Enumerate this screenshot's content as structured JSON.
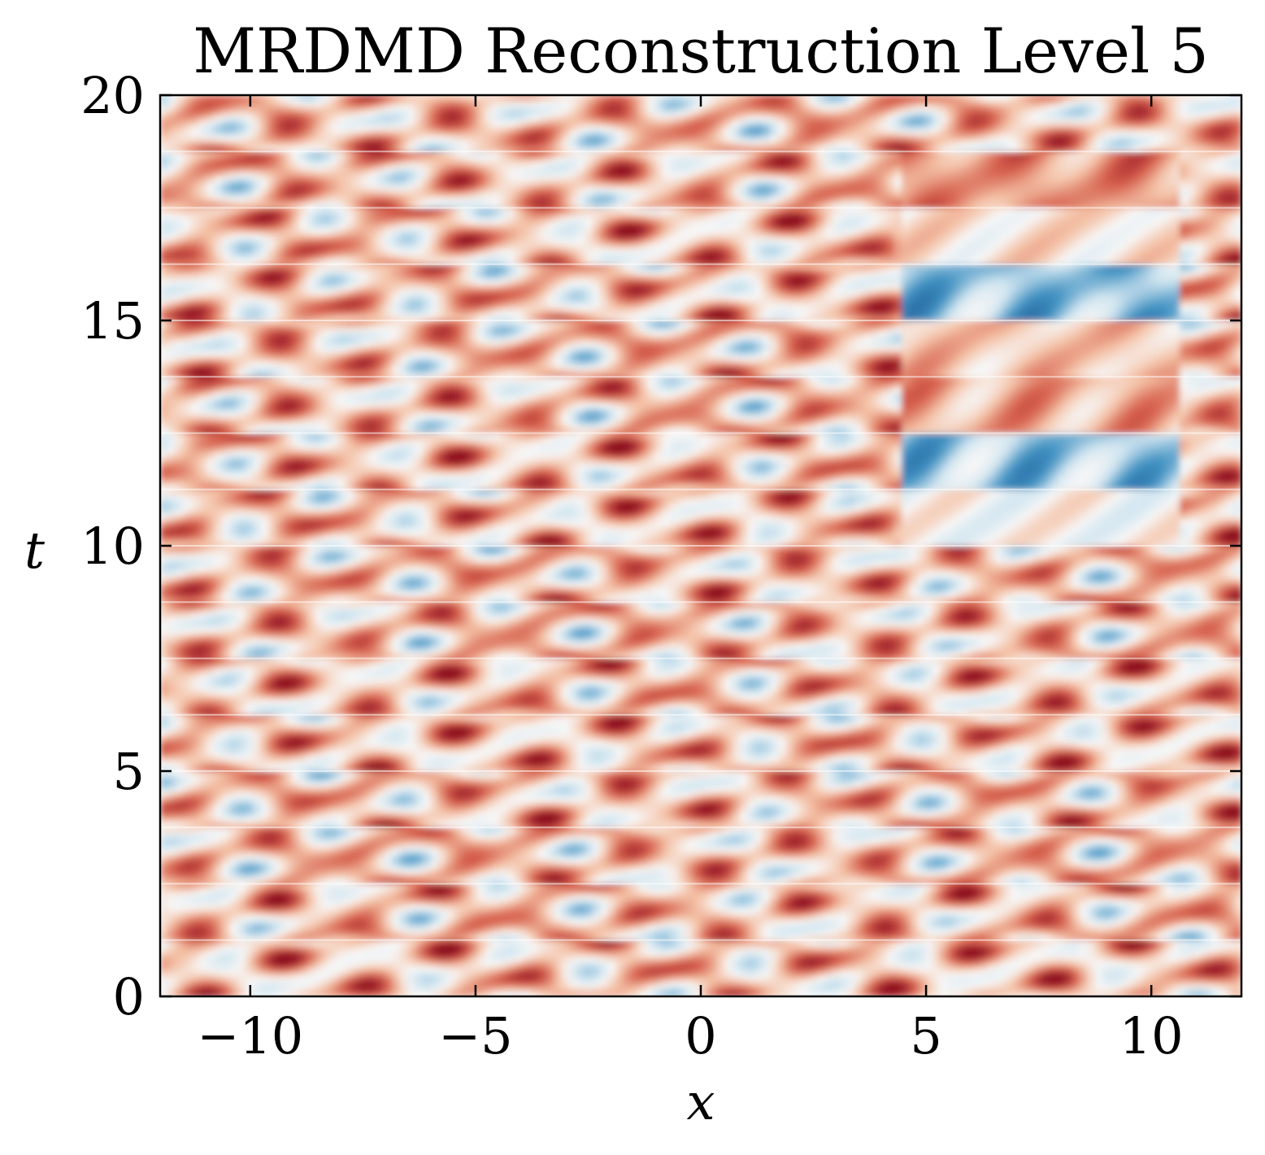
{
  "chart_data": {
    "type": "heatmap",
    "title": "MRDMD Reconstruction Level 5",
    "xlabel": "x",
    "ylabel": "t",
    "xlim": [
      -12,
      12
    ],
    "ylim": [
      0,
      20
    ],
    "xticks": [
      -10,
      -5,
      0,
      5,
      10
    ],
    "xtick_labels": [
      "−10",
      "−5",
      "0",
      "5",
      "10"
    ],
    "yticks": [
      0,
      5,
      10,
      15,
      20
    ],
    "ytick_labels": [
      "0",
      "5",
      "10",
      "15",
      "20"
    ],
    "colormap": "RdBu_r",
    "colors": {
      "neutral": "#f7f7f7",
      "light_red": "#f4c2a7",
      "red": "#d6604d",
      "dark_red": "#8b0a1f",
      "light_blue": "#d1e5f0",
      "blue": "#4393c3",
      "dark_blue": "#104d8c"
    },
    "grid": false,
    "segment_boundaries_t": [
      1.25,
      2.5,
      3.75,
      5,
      6.25,
      7.5,
      8.75,
      10,
      11.25,
      12.5,
      13.75,
      15,
      16.25,
      17.5,
      18.75
    ],
    "high_amplitude_region": {
      "x": [
        4.5,
        10.6
      ],
      "t": [
        10,
        18.75
      ]
    }
  }
}
